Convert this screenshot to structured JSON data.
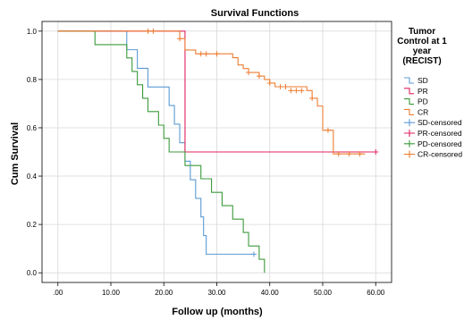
{
  "chart_data": {
    "type": "line",
    "title": "Survival Functions",
    "xlabel": "Follow up (months)",
    "ylabel": "Cum Survival",
    "xlim": [
      -3,
      63
    ],
    "ylim": [
      -0.04,
      1.04
    ],
    "xticks": [
      0,
      10,
      20,
      30,
      40,
      50,
      60
    ],
    "xtick_labels": [
      ".00",
      "10.00",
      "20.00",
      "30.00",
      "40.00",
      "50.00",
      "60.00"
    ],
    "yticks": [
      0.0,
      0.2,
      0.4,
      0.6,
      0.8,
      1.0
    ],
    "ytick_labels": [
      "0.0",
      "0.2",
      "0.4",
      "0.6",
      "0.8",
      "1.0"
    ],
    "grid": true,
    "legend": {
      "title_lines": [
        "Tumor",
        "Control at 1",
        "year",
        "(RECIST)"
      ],
      "placement": "right",
      "entries": [
        "SD",
        "PR",
        "PD",
        "CR",
        "SD-censored",
        "PR-censored",
        "PD-censored",
        "CR-censored"
      ]
    },
    "series": [
      {
        "name": "SD",
        "color": "#5b9bd5",
        "steps": [
          [
            0,
            1.0
          ],
          [
            13,
            0.923
          ],
          [
            15,
            0.846
          ],
          [
            17,
            0.769
          ],
          [
            21,
            0.692
          ],
          [
            22,
            0.615
          ],
          [
            23,
            0.538
          ],
          [
            24,
            0.462
          ],
          [
            25,
            0.385
          ],
          [
            26,
            0.308
          ],
          [
            27,
            0.231
          ],
          [
            27.5,
            0.154
          ],
          [
            28,
            0.077
          ],
          [
            37,
            0.077
          ]
        ],
        "censored": [
          [
            37,
            0.077
          ]
        ]
      },
      {
        "name": "PR",
        "color": "#e0245e",
        "steps": [
          [
            0,
            1.0
          ],
          [
            24,
            0.5
          ],
          [
            60,
            0.5
          ]
        ],
        "censored": [
          [
            60,
            0.5
          ]
        ]
      },
      {
        "name": "PD",
        "color": "#3c9a3c",
        "steps": [
          [
            0,
            1.0
          ],
          [
            7,
            0.944
          ],
          [
            13,
            0.889
          ],
          [
            14,
            0.833
          ],
          [
            15,
            0.778
          ],
          [
            16,
            0.722
          ],
          [
            17,
            0.667
          ],
          [
            19,
            0.611
          ],
          [
            20,
            0.556
          ],
          [
            21,
            0.5
          ],
          [
            24,
            0.444
          ],
          [
            27,
            0.389
          ],
          [
            29,
            0.333
          ],
          [
            31,
            0.278
          ],
          [
            33,
            0.222
          ],
          [
            35,
            0.167
          ],
          [
            36,
            0.111
          ],
          [
            38,
            0.056
          ],
          [
            39,
            0.0
          ]
        ],
        "censored": []
      },
      {
        "name": "CR",
        "color": "#ed7d31",
        "steps": [
          [
            0,
            1.0
          ],
          [
            23,
            0.969
          ],
          [
            24,
            0.922
          ],
          [
            26,
            0.906
          ],
          [
            33,
            0.89
          ],
          [
            34,
            0.86
          ],
          [
            35,
            0.845
          ],
          [
            36,
            0.829
          ],
          [
            38,
            0.814
          ],
          [
            39,
            0.8
          ],
          [
            40,
            0.785
          ],
          [
            41,
            0.77
          ],
          [
            47,
            0.754
          ],
          [
            48,
            0.722
          ],
          [
            49,
            0.69
          ],
          [
            50,
            0.59
          ],
          [
            52,
            0.492
          ],
          [
            58,
            0.492
          ]
        ],
        "censored": [
          [
            17,
            1.0
          ],
          [
            18,
            1.0
          ],
          [
            23,
            0.969
          ],
          [
            27,
            0.906
          ],
          [
            28,
            0.906
          ],
          [
            30,
            0.906
          ],
          [
            36,
            0.829
          ],
          [
            38,
            0.814
          ],
          [
            40,
            0.785
          ],
          [
            42,
            0.77
          ],
          [
            43,
            0.77
          ],
          [
            44,
            0.754
          ],
          [
            45,
            0.754
          ],
          [
            46,
            0.754
          ],
          [
            48,
            0.722
          ],
          [
            51,
            0.59
          ],
          [
            53,
            0.492
          ],
          [
            55,
            0.492
          ],
          [
            57,
            0.492
          ]
        ]
      }
    ]
  }
}
